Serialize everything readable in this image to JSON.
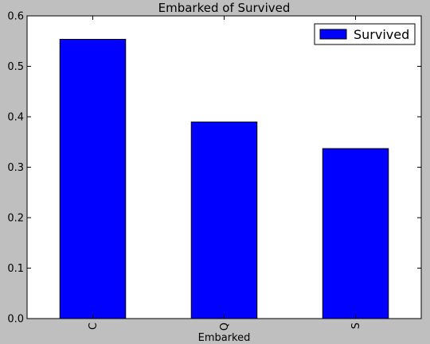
{
  "chart_data": {
    "type": "bar",
    "title": "Embarked of Survived",
    "xlabel": "Embarked",
    "ylabel": "",
    "categories": [
      "C",
      "Q",
      "S"
    ],
    "series": [
      {
        "name": "Survived",
        "values": [
          0.553571,
          0.38961,
          0.336957
        ]
      }
    ],
    "ylim": [
      0,
      0.6
    ],
    "yticks": [
      "0.0",
      "0.1",
      "0.2",
      "0.3",
      "0.4",
      "0.5",
      "0.6"
    ],
    "grid": false,
    "legend": "top-right",
    "colors": {
      "bar": "#0000ff",
      "background": "#bfbfbf",
      "plot_area": "#ffffff"
    }
  }
}
